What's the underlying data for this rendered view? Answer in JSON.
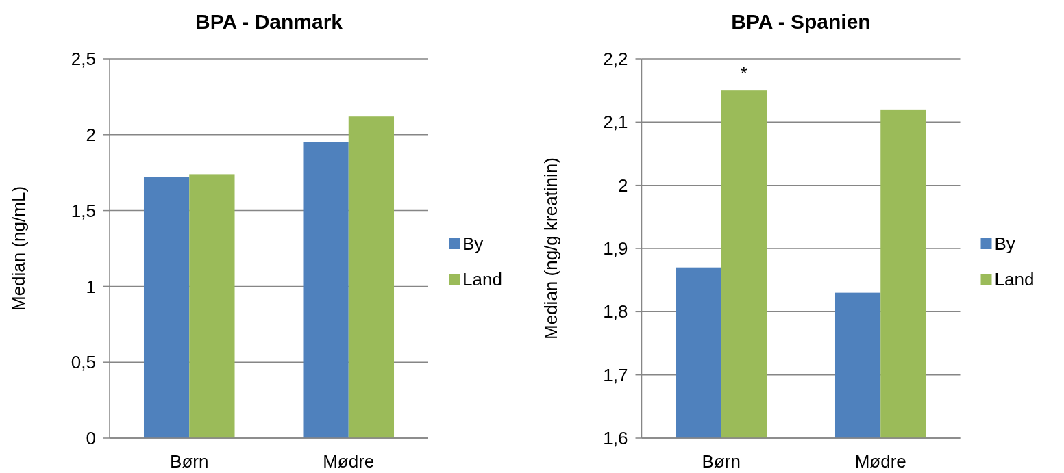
{
  "chart_data": [
    {
      "type": "bar",
      "title": "BPA - Danmark",
      "ylabel": "Median (ng/mL)",
      "categories": [
        "Børn",
        "Mødre"
      ],
      "series": [
        {
          "name": "By",
          "color": "#4f81bd",
          "values": [
            1.72,
            1.95
          ]
        },
        {
          "name": "Land",
          "color": "#9bbb59",
          "values": [
            1.74,
            2.12
          ]
        }
      ],
      "ylim": [
        0,
        2.5
      ],
      "yticks": [
        0,
        {
          "value": 0.5,
          "label": "0,5"
        },
        1,
        {
          "value": 1.5,
          "label": "1,5"
        },
        2,
        {
          "value": 2.5,
          "label": "2,5"
        }
      ],
      "grid": "y",
      "legend": "right"
    },
    {
      "type": "bar",
      "title": "BPA - Spanien",
      "ylabel": "Median (ng/g kreatinin)",
      "categories": [
        "Børn",
        "Mødre"
      ],
      "series": [
        {
          "name": "By",
          "color": "#4f81bd",
          "values": [
            1.87,
            1.83
          ]
        },
        {
          "name": "Land",
          "color": "#9bbb59",
          "values": [
            2.15,
            2.12
          ]
        }
      ],
      "ylim": [
        1.6,
        2.2
      ],
      "yticks": [
        {
          "value": 1.6,
          "label": "1,6"
        },
        {
          "value": 1.7,
          "label": "1,7"
        },
        {
          "value": 1.8,
          "label": "1,8"
        },
        {
          "value": 1.9,
          "label": "1,9"
        },
        2,
        {
          "value": 2.1,
          "label": "2,1"
        },
        {
          "value": 2.2,
          "label": "2,2"
        }
      ],
      "grid": "y",
      "legend": "right",
      "annotations": [
        {
          "text": "*",
          "x": "Børn",
          "y": 2.15
        }
      ]
    }
  ]
}
